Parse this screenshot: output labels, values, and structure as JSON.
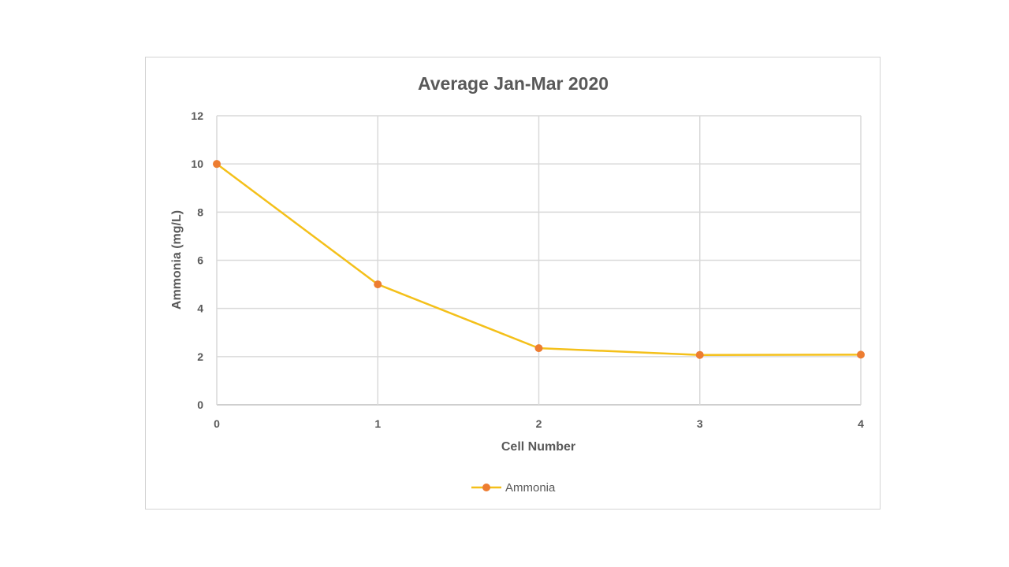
{
  "chart_data": {
    "type": "line",
    "title": "Average Jan-Mar 2020",
    "xlabel": "Cell Number",
    "ylabel": "Ammonia  (mg/L)",
    "x": [
      0,
      1,
      2,
      3,
      4
    ],
    "xticks": [
      "0",
      "1",
      "2",
      "3",
      "4"
    ],
    "yticks": [
      "0",
      "2",
      "4",
      "6",
      "8",
      "10",
      "12"
    ],
    "xlim": [
      0,
      4
    ],
    "ylim": [
      0,
      12
    ],
    "grid": true,
    "legend_position": "bottom",
    "series": [
      {
        "name": "Ammonia",
        "values": [
          10,
          5,
          2.35,
          2.07,
          2.08
        ],
        "line_color": "#f4c01a",
        "marker_color": "#ed7d31"
      }
    ]
  },
  "colors": {
    "text": "#595959",
    "grid": "#d9d9d9",
    "frame": "#d4d4d4"
  }
}
